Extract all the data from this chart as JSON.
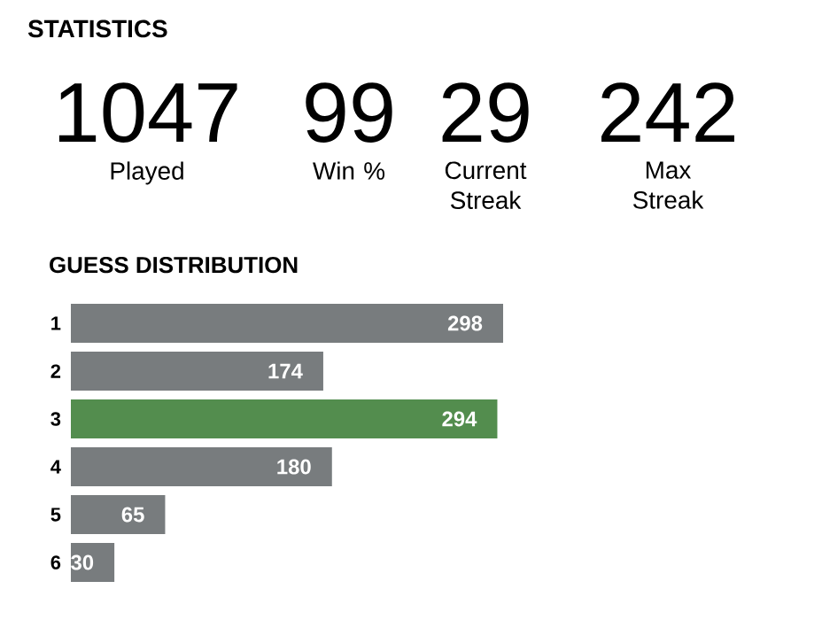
{
  "chart_data": [
    {
      "type": "other",
      "title": "STATISTICS",
      "annotations": [
        "1047",
        "Played",
        "99",
        "Win %",
        "29",
        "Current Streak",
        "242",
        "Max Streak"
      ]
    },
    {
      "type": "bar",
      "orientation": "horizontal",
      "title": "GUESS DISTRIBUTION",
      "categories": [
        "1",
        "2",
        "3",
        "4",
        "5",
        "6"
      ],
      "values": [
        298,
        174,
        294,
        180,
        65,
        30
      ],
      "colors": [
        "#787c7e",
        "#787c7e",
        "#538d4e",
        "#787c7e",
        "#787c7e",
        "#787c7e"
      ],
      "data_labels": true
    }
  ]
}
